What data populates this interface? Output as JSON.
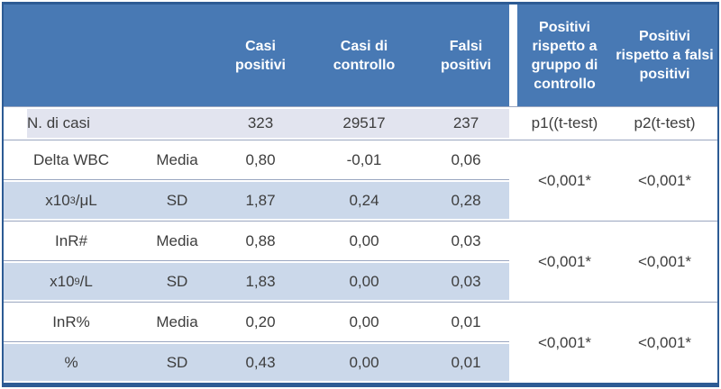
{
  "colors": {
    "header_bg": "#4879b4",
    "outer_border": "#2d5b94",
    "row_lavender": "#e2e4ef",
    "row_blue": "#cbd8ea",
    "separator_line": "#9aa6c0",
    "text": "#3d3d3d",
    "header_text": "#ffffff"
  },
  "header": {
    "casi_positivi": "Casi positivi",
    "casi_controllo": "Casi di controllo",
    "falsi_positivi": "Falsi positivi",
    "p_gruppo": "Positivi rispetto a gruppo di controllo",
    "p_falsi": "Positivi rispetto a falsi positivi"
  },
  "n_casi_row": {
    "label": "N. di casi",
    "casi_positivi": "323",
    "casi_controllo": "29517",
    "falsi_positivi": "237",
    "p1": "p1((t-test)",
    "p2": "p2(t-test)"
  },
  "sections": [
    {
      "rows": [
        {
          "label_base": "Delta WBC",
          "label_sup": "",
          "label_rest": "",
          "stat": "Media",
          "v1": "0,80",
          "v2": "-0,01",
          "v3": "0,06"
        },
        {
          "label_base": "x10",
          "label_sup": "3",
          "label_rest": "/μL",
          "stat": "SD",
          "v1": "1,87",
          "v2": "0,24",
          "v3": "0,28"
        }
      ],
      "p1": "<0,001*",
      "p2": "<0,001*"
    },
    {
      "rows": [
        {
          "label_base": "InR#",
          "label_sup": "",
          "label_rest": "",
          "stat": "Media",
          "v1": "0,88",
          "v2": "0,00",
          "v3": "0,03"
        },
        {
          "label_base": "x10",
          "label_sup": "9",
          "label_rest": "/L",
          "stat": "SD",
          "v1": "1,83",
          "v2": "0,00",
          "v3": "0,03"
        }
      ],
      "p1": "<0,001*",
      "p2": "<0,001*"
    },
    {
      "rows": [
        {
          "label_base": "InR%",
          "label_sup": "",
          "label_rest": "",
          "stat": "Media",
          "v1": "0,20",
          "v2": "0,00",
          "v3": "0,01"
        },
        {
          "label_base": "%",
          "label_sup": "",
          "label_rest": "",
          "stat": "SD",
          "v1": "0,43",
          "v2": "0,00",
          "v3": "0,01"
        }
      ],
      "p1": "<0,001*",
      "p2": "<0,001*"
    }
  ]
}
